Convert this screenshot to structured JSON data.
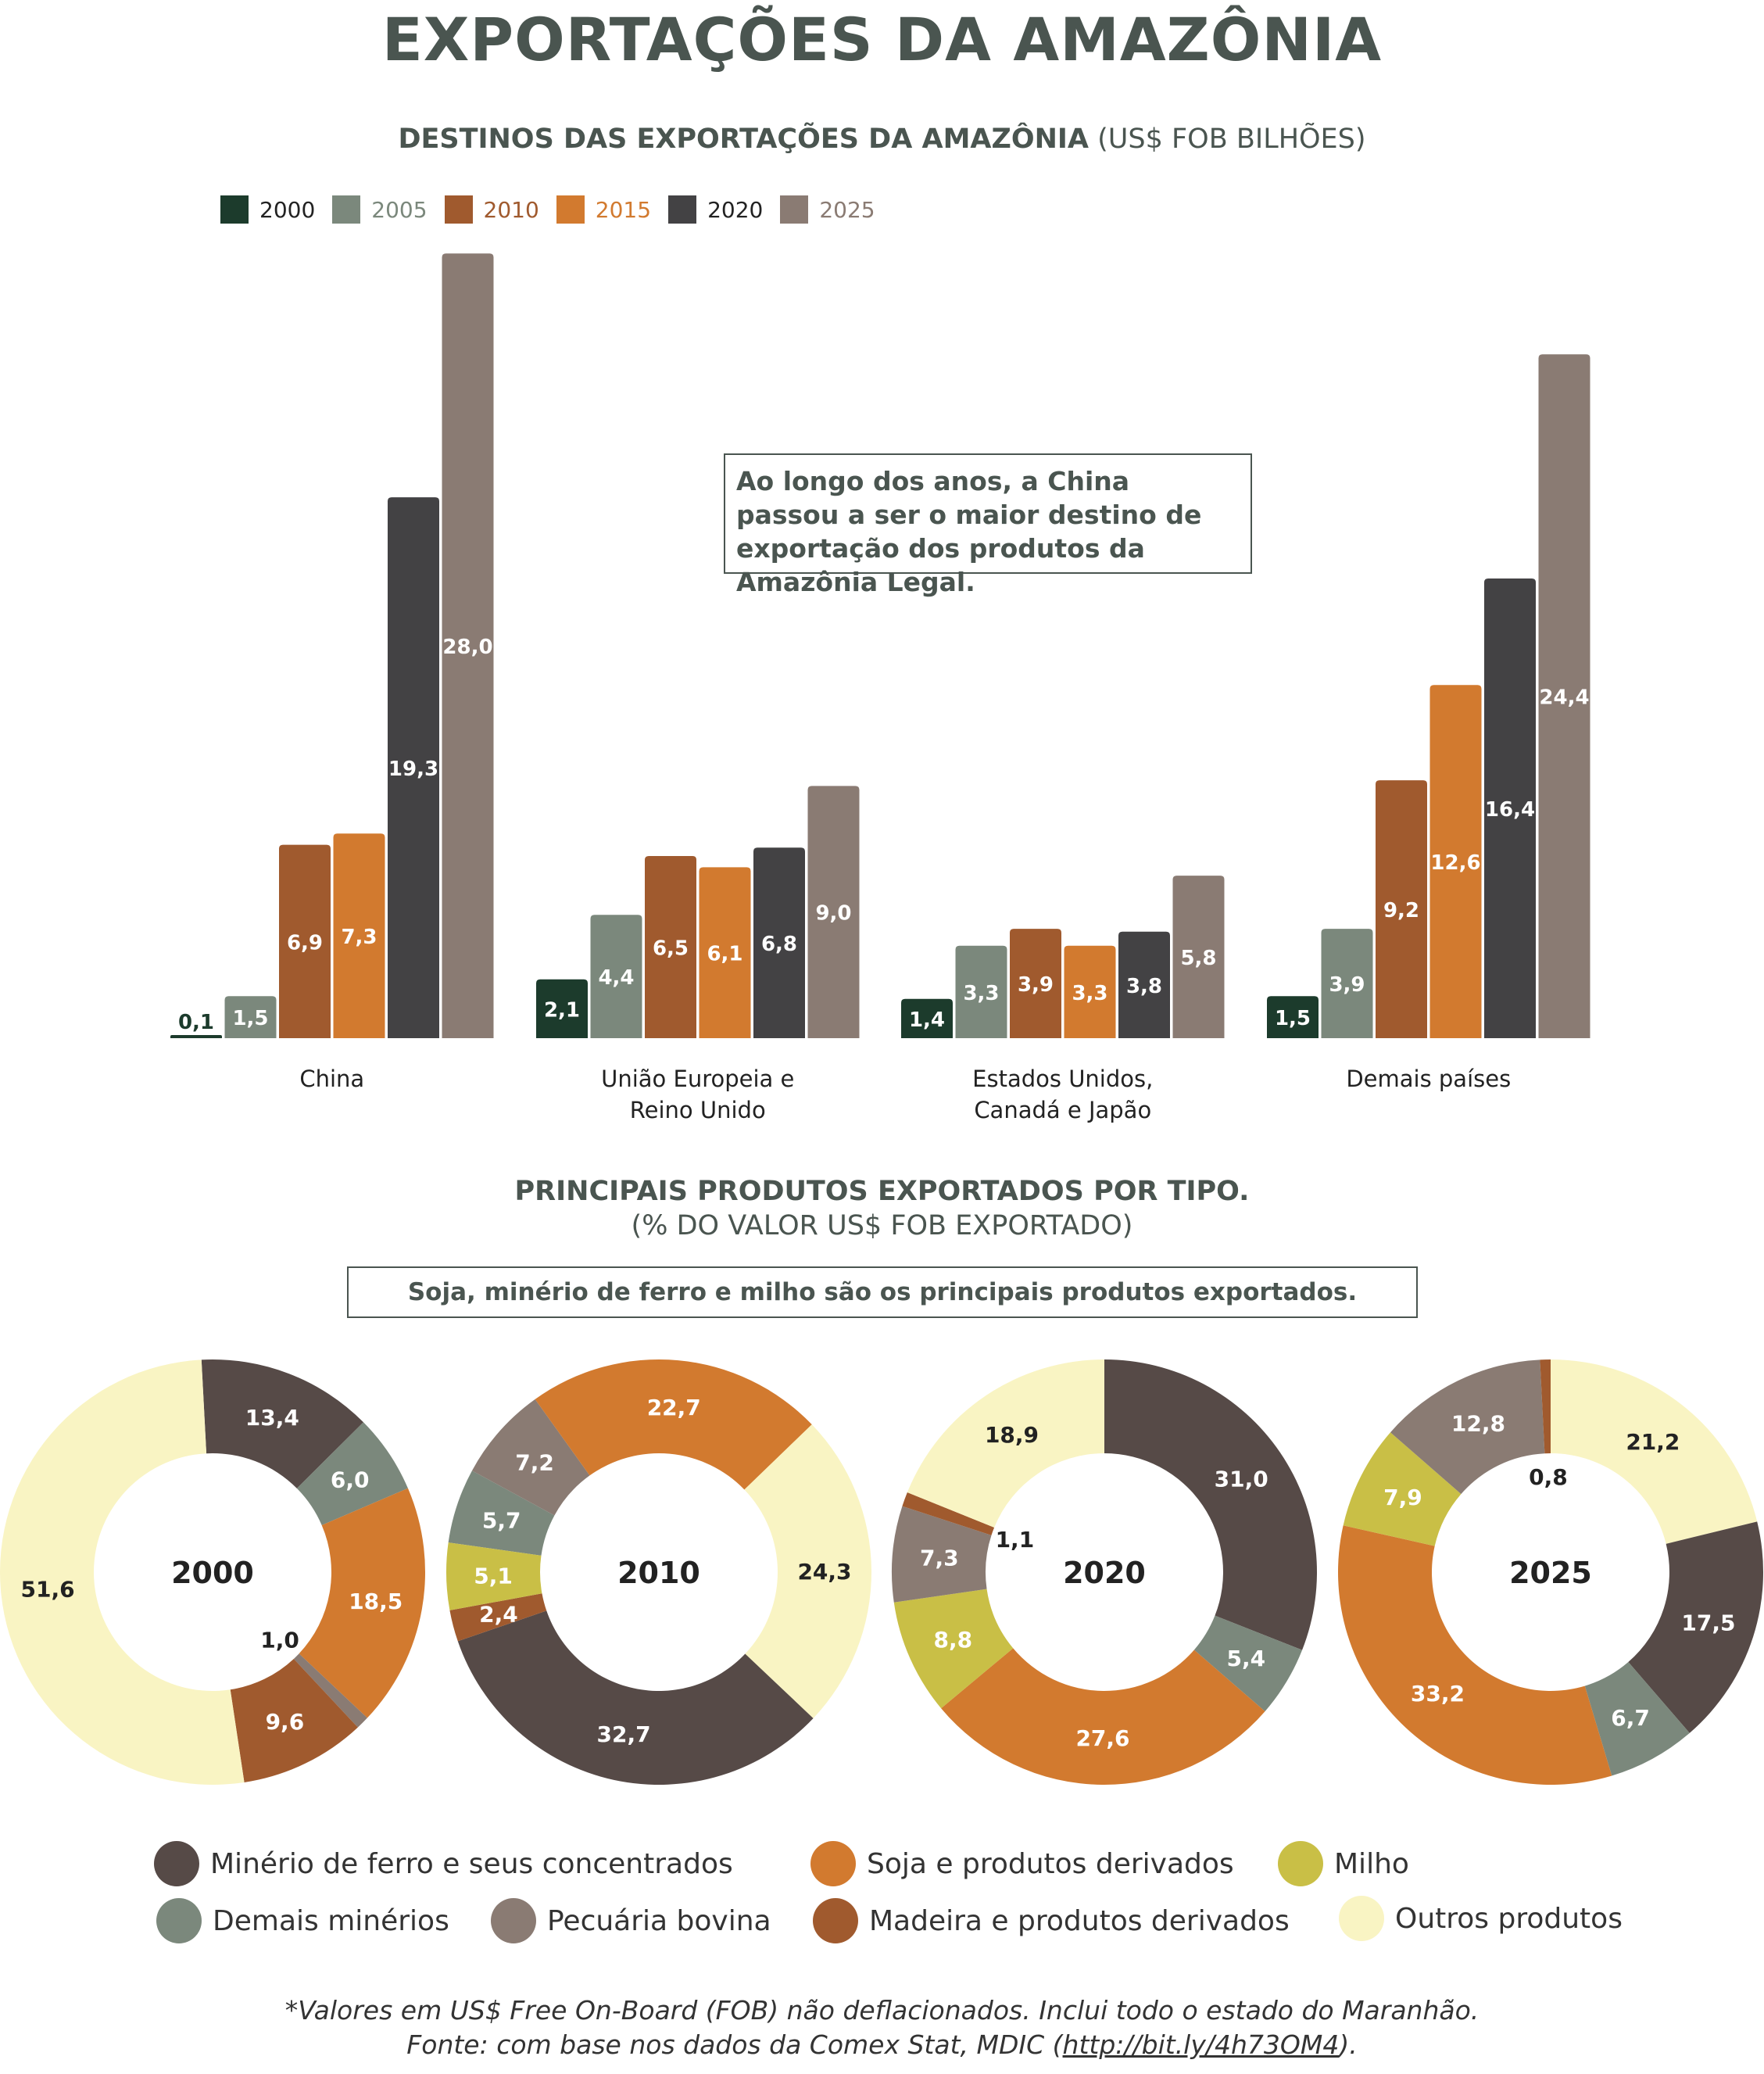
{
  "title": "EXPORTAÇÕES DA AMAZÔNIA",
  "bar_section": {
    "subtitle_bold": "DESTINOS DAS EXPORTAÇÕES DA AMAZÔNIA",
    "subtitle_light": "(US$ FOB BILHÕES)",
    "callout": "Ao longo dos anos, a China passou a ser o maior destino de exportação dos produtos da Amazônia Legal."
  },
  "donut_section": {
    "subtitle_line1": "PRINCIPAIS PRODUTOS EXPORTADOS POR TIPO.",
    "subtitle_line2": "(% DO VALOR US$ FOB EXPORTADO)",
    "callout": "Soja, minério de ferro e milho são os principais produtos exportados."
  },
  "footnote": {
    "line1": "*Valores em US$ Free On-Board (FOB) não deflacionados. Inclui todo o estado do Maranhão.",
    "line2_prefix": "Fonte: com base nos dados da Comex Stat, MDIC (",
    "line2_link": "http://bit.ly/4h73OM4",
    "line2_suffix": ")."
  },
  "chart_data": [
    {
      "type": "bar",
      "title": "DESTINOS DAS EXPORTAÇÕES DA AMAZÔNIA (US$ FOB BILHÕES)",
      "categories": [
        "China",
        "União Europeia e Reino Unido",
        "Estados Unidos, Canadá e Japão",
        "Demais países"
      ],
      "series": [
        {
          "name": "2000",
          "color": "#1c3b2c",
          "values": [
            0.1,
            2.1,
            1.4,
            1.5
          ],
          "labels": [
            "0,1",
            "2,1",
            "1,4",
            "1,5"
          ]
        },
        {
          "name": "2005",
          "color": "#7b887c",
          "values": [
            1.5,
            4.4,
            3.3,
            3.9
          ],
          "labels": [
            "1,5",
            "4,4",
            "3,3",
            "3,9"
          ]
        },
        {
          "name": "2010",
          "color": "#a05a2e",
          "values": [
            6.9,
            6.5,
            3.9,
            9.2
          ],
          "labels": [
            "6,9",
            "6,5",
            "3,9",
            "9,2"
          ]
        },
        {
          "name": "2015",
          "color": "#d27a2f",
          "values": [
            7.3,
            6.1,
            3.3,
            12.6
          ],
          "labels": [
            "7,3",
            "6,1",
            "3,3",
            "12,6"
          ]
        },
        {
          "name": "2020",
          "color": "#434244",
          "values": [
            19.3,
            6.8,
            3.8,
            16.4
          ],
          "labels": [
            "19,3",
            "6,8",
            "3,8",
            "16,4"
          ]
        },
        {
          "name": "2025",
          "color": "#8a7b73",
          "values": [
            28.0,
            9.0,
            5.8,
            24.4
          ],
          "labels": [
            "28,0",
            "9,0",
            "5,8",
            "24,4"
          ]
        }
      ],
      "category_lines": [
        [
          "China"
        ],
        [
          "União Europeia e",
          "Reino Unido"
        ],
        [
          "Estados Unidos,",
          "Canadá e Japão"
        ],
        [
          "Demais países"
        ]
      ],
      "legend": "top-left",
      "grid": false
    },
    {
      "type": "pie",
      "variant": "donut",
      "title": "PRINCIPAIS PRODUTOS EXPORTADOS POR TIPO. (% DO VALOR US$ FOB EXPORTADO)",
      "categories": [
        {
          "key": "minerio",
          "name": "Minério de ferro e seus concentrados",
          "color": "#564a47"
        },
        {
          "key": "demais_min",
          "name": "Demais minérios",
          "color": "#7b887c"
        },
        {
          "key": "soja",
          "name": "Soja e produtos derivados",
          "color": "#d27a2f"
        },
        {
          "key": "pecuaria",
          "name": "Pecuária bovina",
          "color": "#8a7b73"
        },
        {
          "key": "milho",
          "name": "Milho",
          "color": "#c9bf46"
        },
        {
          "key": "madeira",
          "name": "Madeira e produtos derivados",
          "color": "#a05a2e"
        },
        {
          "key": "outros",
          "name": "Outros produtos",
          "color": "#f9f4c3"
        }
      ],
      "donuts": [
        {
          "year": "2000",
          "slices": [
            {
              "key": "minerio",
              "value": 13.4,
              "label": "13,4"
            },
            {
              "key": "demais_min",
              "value": 6.0,
              "label": "6,0"
            },
            {
              "key": "soja",
              "value": 18.5,
              "label": "18,5"
            },
            {
              "key": "pecuaria",
              "value": 1.0,
              "label": "1,0"
            },
            {
              "key": "madeira",
              "value": 9.6,
              "label": "9,6"
            },
            {
              "key": "outros",
              "value": 51.6,
              "label": "51,6"
            }
          ]
        },
        {
          "year": "2010",
          "slices": [
            {
              "key": "demais_min",
              "value": 5.7,
              "label": "5,7"
            },
            {
              "key": "pecuaria",
              "value": 7.2,
              "label": "7,2"
            },
            {
              "key": "soja",
              "value": 22.7,
              "label": "22,7"
            },
            {
              "key": "outros",
              "value": 24.3,
              "label": "24,3"
            },
            {
              "key": "minerio",
              "value": 32.7,
              "label": "32,7"
            },
            {
              "key": "madeira",
              "value": 2.4,
              "label": "2,4"
            },
            {
              "key": "milho",
              "value": 5.1,
              "label": "5,1"
            }
          ]
        },
        {
          "year": "2020",
          "slices": [
            {
              "key": "minerio",
              "value": 31.0,
              "label": "31,0"
            },
            {
              "key": "demais_min",
              "value": 5.4,
              "label": "5,4"
            },
            {
              "key": "soja",
              "value": 27.6,
              "label": "27,6"
            },
            {
              "key": "milho",
              "value": 8.8,
              "label": "8,8"
            },
            {
              "key": "pecuaria",
              "value": 7.3,
              "label": "7,3"
            },
            {
              "key": "madeira",
              "value": 1.1,
              "label": "1,1"
            },
            {
              "key": "outros",
              "value": 18.9,
              "label": "18,9"
            }
          ]
        },
        {
          "year": "2025",
          "slices": [
            {
              "key": "outros",
              "value": 21.2,
              "label": "21,2"
            },
            {
              "key": "minerio",
              "value": 17.5,
              "label": "17,5"
            },
            {
              "key": "demais_min",
              "value": 6.7,
              "label": "6,7"
            },
            {
              "key": "soja",
              "value": 33.2,
              "label": "33,2"
            },
            {
              "key": "milho",
              "value": 7.9,
              "label": "7,9"
            },
            {
              "key": "pecuaria",
              "value": 12.8,
              "label": "12,8"
            },
            {
              "key": "madeira",
              "value": 0.8,
              "label": "0,8"
            }
          ]
        }
      ],
      "legend": "bottom"
    }
  ]
}
